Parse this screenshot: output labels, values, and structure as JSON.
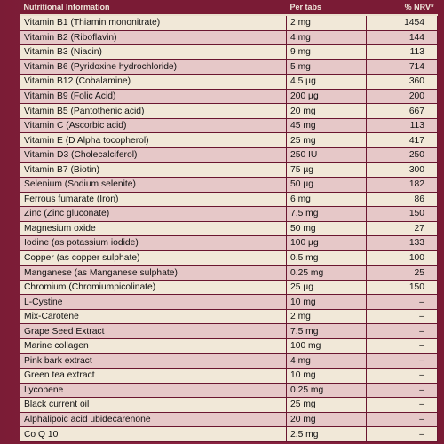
{
  "table": {
    "headers": [
      "Nutritional Information",
      "Per tabs",
      "% NRV*"
    ],
    "rows": [
      [
        "Vitamin B1 (Thiamin mononitrate)",
        "2 mg",
        "1454"
      ],
      [
        "Vitamin B2 (Riboflavin)",
        "4 mg",
        "144"
      ],
      [
        "Vitamin B3 (Niacin)",
        "9 mg",
        "113"
      ],
      [
        "Vitamin B6 (Pyridoxine hydrochloride)",
        "5 mg",
        "714"
      ],
      [
        "Vitamin B12 (Cobalamine)",
        "4.5 µg",
        "360"
      ],
      [
        "Vitamin B9 (Folic Acid)",
        "200 µg",
        "200"
      ],
      [
        "Vitamin B5 (Pantothenic acid)",
        "20 mg",
        "667"
      ],
      [
        "Vitamin C (Ascorbic acid)",
        "45 mg",
        "113"
      ],
      [
        "Vitamin E (D Alpha tocopherol)",
        "25 mg",
        "417"
      ],
      [
        "Vitamin D3 (Cholecalciferol)",
        "250 IU",
        "250"
      ],
      [
        "Vitamin B7 (Biotin)",
        "75 µg",
        "300"
      ],
      [
        "Selenium (Sodium selenite)",
        "50 µg",
        "182"
      ],
      [
        "Ferrous fumarate (Iron)",
        "6 mg",
        "86"
      ],
      [
        "Zinc (Zinc gluconate)",
        "7.5 mg",
        "150"
      ],
      [
        "Magnesium oxide",
        "50 mg",
        "27"
      ],
      [
        "Iodine (as potassium iodide)",
        "100 µg",
        "133"
      ],
      [
        "Copper (as copper sulphate)",
        "0.5 mg",
        "100"
      ],
      [
        "Manganese (as Manganese sulphate)",
        "0.25 mg",
        "25"
      ],
      [
        "Chromium (Chromiumpicolinate)",
        "25 µg",
        "150"
      ],
      [
        "L-Cystine",
        "10 mg",
        "–"
      ],
      [
        "Mix-Carotene",
        "2 mg",
        "–"
      ],
      [
        "Grape Seed Extract",
        "7.5 mg",
        "–"
      ],
      [
        "Marine collagen",
        "100 mg",
        "–"
      ],
      [
        "Pink bark extract",
        "4 mg",
        "–"
      ],
      [
        "Green tea extract",
        "10 mg",
        "–"
      ],
      [
        "Lycopene",
        "0.25 mg",
        "–"
      ],
      [
        "Black current oil",
        "25 mg",
        "–"
      ],
      [
        "Alphalipoic acid ubidecarenone",
        "20 mg",
        "–"
      ],
      [
        "Co Q 10",
        "2.5 mg",
        "–"
      ]
    ]
  }
}
